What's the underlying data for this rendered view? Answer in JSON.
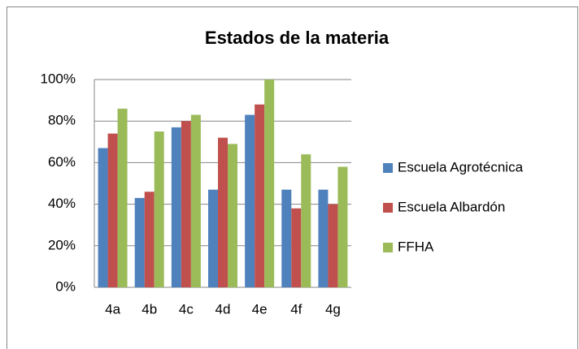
{
  "chart_data": {
    "type": "bar",
    "title": "Estados de la materia",
    "categories": [
      "4a",
      "4b",
      "4c",
      "4d",
      "4e",
      "4f",
      "4g"
    ],
    "series": [
      {
        "name": "Escuela Agrotécnica",
        "color": "#4f81bd",
        "values": [
          67,
          43,
          77,
          47,
          83,
          47,
          47
        ]
      },
      {
        "name": "Escuela Albardón",
        "color": "#c0504d",
        "values": [
          74,
          46,
          80,
          72,
          88,
          38,
          40
        ]
      },
      {
        "name": "FFHA",
        "color": "#9bbb59",
        "values": [
          86,
          75,
          83,
          69,
          100,
          64,
          58
        ]
      }
    ],
    "ylim": [
      0,
      100
    ],
    "yticks": [
      {
        "value": 0,
        "label": "0%"
      },
      {
        "value": 20,
        "label": "20%"
      },
      {
        "value": 40,
        "label": "40%"
      },
      {
        "value": 60,
        "label": "60%"
      },
      {
        "value": 80,
        "label": "80%"
      },
      {
        "value": 100,
        "label": "100%"
      }
    ],
    "grid": true,
    "legend": "right"
  }
}
